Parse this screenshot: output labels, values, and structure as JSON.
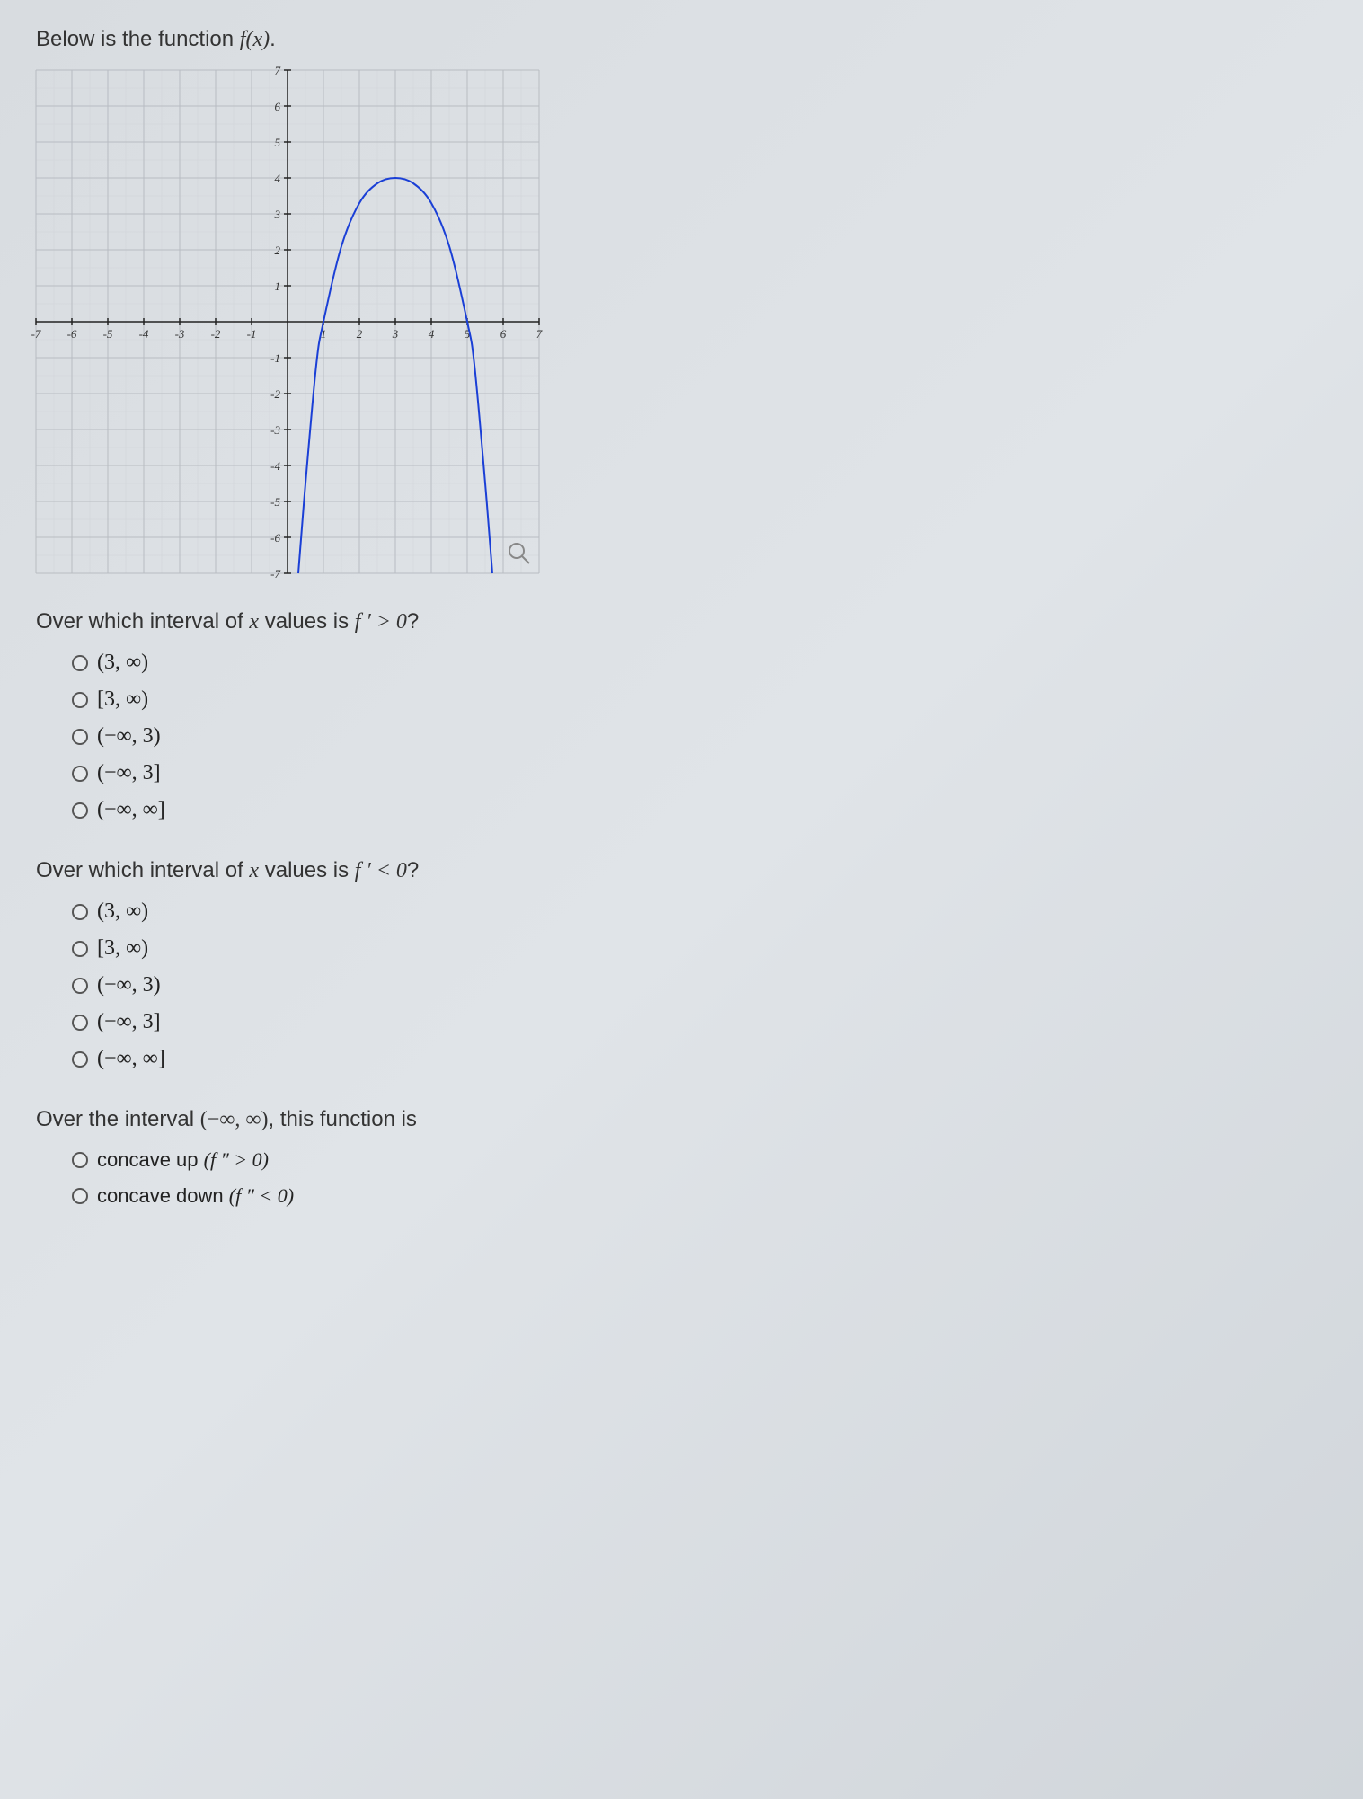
{
  "intro": {
    "prefix": "Below is the function ",
    "func": "f(x)",
    "suffix": "."
  },
  "chart": {
    "type": "line",
    "xlim": [
      -7,
      7
    ],
    "ylim": [
      -7,
      7
    ],
    "xtick_step": 1,
    "ytick_step": 1,
    "xticks": [
      -7,
      -6,
      -5,
      -4,
      -3,
      -2,
      -1,
      1,
      2,
      3,
      4,
      5,
      6,
      7
    ],
    "yticks": [
      -7,
      -6,
      -5,
      -4,
      -3,
      -2,
      -1,
      1,
      2,
      3,
      4,
      5,
      6,
      7
    ],
    "label_fontsize": 13,
    "grid_color": "#b8bcc2",
    "minor_grid_color": "#d0d3d8",
    "axis_color": "#222222",
    "curve_color": "#1a3fd6",
    "curve_width": 2,
    "background_color": "transparent",
    "curve_points": [
      [
        0.3,
        -7
      ],
      [
        0.5,
        -4.5
      ],
      [
        0.8,
        -1.2
      ],
      [
        1.0,
        0.0
      ],
      [
        1.5,
        2.1
      ],
      [
        2.0,
        3.3
      ],
      [
        2.5,
        3.85
      ],
      [
        3.0,
        4.0
      ],
      [
        3.5,
        3.85
      ],
      [
        4.0,
        3.3
      ],
      [
        4.5,
        2.1
      ],
      [
        5.0,
        0.0
      ],
      [
        5.2,
        -1.2
      ],
      [
        5.5,
        -4.5
      ],
      [
        5.7,
        -7
      ]
    ],
    "zoom_icon_color": "#888888"
  },
  "q1": {
    "prompt_prefix": "Over which interval of ",
    "prompt_var": "x",
    "prompt_mid": " values is ",
    "prompt_expr": "f ′ > 0",
    "prompt_suffix": "?",
    "options": [
      "(3, ∞)",
      "[3, ∞)",
      "(−∞, 3)",
      "(−∞, 3]",
      "(−∞, ∞]"
    ]
  },
  "q2": {
    "prompt_prefix": "Over which interval of ",
    "prompt_var": "x",
    "prompt_mid": " values is ",
    "prompt_expr": "f ′ < 0",
    "prompt_suffix": "?",
    "options": [
      "(3, ∞)",
      "[3, ∞)",
      "(−∞, 3)",
      "(−∞, 3]",
      "(−∞, ∞]"
    ]
  },
  "q3": {
    "prompt_prefix": "Over the interval ",
    "prompt_interval": "(−∞, ∞)",
    "prompt_suffix": ", this function is",
    "options": [
      {
        "label": "concave up ",
        "expr": "(f ″ > 0)"
      },
      {
        "label": "concave down ",
        "expr": "(f ″ < 0)"
      }
    ]
  }
}
